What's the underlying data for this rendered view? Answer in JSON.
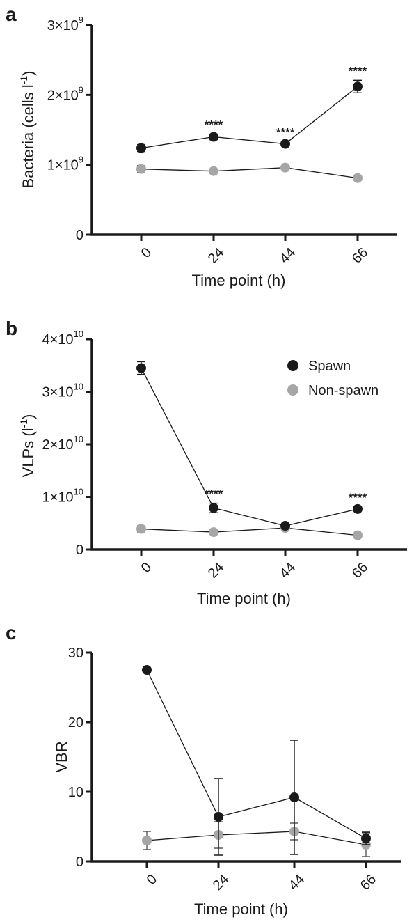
{
  "chart_data": [
    {
      "panel": "a",
      "type": "line",
      "ylabel": "Bacteria (cells l",
      "ylabel_sup": "-1",
      "ylabel_end": ")",
      "xlabel": "Time point (h)",
      "categories": [
        "0",
        "24",
        "44",
        "66"
      ],
      "yticks": [
        {
          "value": 0,
          "mant": "0",
          "exp": ""
        },
        {
          "value": 1000000000,
          "mant": "1×10",
          "exp": "9"
        },
        {
          "value": 2000000000,
          "mant": "2×10",
          "exp": "9"
        },
        {
          "value": 3000000000,
          "mant": "3×10",
          "exp": "9"
        }
      ],
      "ylim": [
        0,
        3000000000
      ],
      "series": [
        {
          "name": "Spawn",
          "color": "#1a1a1a",
          "values": [
            1240000000,
            1400000000,
            1300000000,
            2120000000
          ],
          "errors": [
            50000000,
            40000000,
            30000000,
            90000000
          ]
        },
        {
          "name": "Non-spawn",
          "color": "#a6a6a6",
          "values": [
            940000000,
            910000000,
            960000000,
            810000000
          ],
          "errors": [
            50000000,
            30000000,
            30000000,
            30000000
          ]
        }
      ],
      "annotations": [
        {
          "x_index": 1,
          "text": "****"
        },
        {
          "x_index": 2,
          "text": "****"
        },
        {
          "x_index": 3,
          "text": "****"
        }
      ],
      "grid": false
    },
    {
      "panel": "b",
      "type": "line",
      "ylabel": "VLPs (l",
      "ylabel_sup": "-1",
      "ylabel_end": ")",
      "xlabel": "Time point (h)",
      "categories": [
        "0",
        "24",
        "44",
        "66"
      ],
      "yticks": [
        {
          "value": 0,
          "mant": "0",
          "exp": ""
        },
        {
          "value": 10000000000,
          "mant": "1×10",
          "exp": "10"
        },
        {
          "value": 20000000000,
          "mant": "2×10",
          "exp": "10"
        },
        {
          "value": 30000000000,
          "mant": "3×10",
          "exp": "10"
        },
        {
          "value": 40000000000,
          "mant": "4×10",
          "exp": "10"
        }
      ],
      "ylim": [
        0,
        40000000000
      ],
      "series": [
        {
          "name": "Spawn",
          "color": "#1a1a1a",
          "values": [
            34500000000,
            7900000000,
            4500000000,
            7700000000
          ],
          "errors": [
            1200000000,
            900000000,
            300000000,
            400000000
          ]
        },
        {
          "name": "Non-spawn",
          "color": "#a6a6a6",
          "values": [
            3900000000,
            3300000000,
            4100000000,
            2700000000
          ],
          "errors": [
            600000000,
            300000000,
            300000000,
            300000000
          ]
        }
      ],
      "annotations": [
        {
          "x_index": 1,
          "text": "****"
        },
        {
          "x_index": 3,
          "text": "****"
        }
      ],
      "legend": {
        "position": "top-right",
        "entries": [
          "Spawn",
          "Non-spawn"
        ]
      },
      "grid": false
    },
    {
      "panel": "c",
      "type": "line",
      "ylabel": "VBR",
      "ylabel_sup": "",
      "ylabel_end": "",
      "xlabel": "Time point (h)",
      "categories": [
        "0",
        "24",
        "44",
        "66"
      ],
      "yticks": [
        {
          "value": 0,
          "mant": "0",
          "exp": ""
        },
        {
          "value": 10,
          "mant": "10",
          "exp": ""
        },
        {
          "value": 20,
          "mant": "20",
          "exp": ""
        },
        {
          "value": 30,
          "mant": "30",
          "exp": ""
        }
      ],
      "ylim": [
        0,
        30
      ],
      "series": [
        {
          "name": "Spawn",
          "color": "#1a1a1a",
          "values": [
            27.5,
            6.4,
            9.2,
            3.3
          ],
          "errors": [
            0,
            5.5,
            8.2,
            0.9
          ]
        },
        {
          "name": "Non-spawn",
          "color": "#a6a6a6",
          "values": [
            3.0,
            3.8,
            4.3,
            2.4
          ],
          "errors": [
            1.3,
            1.9,
            1.2,
            1.7
          ]
        }
      ],
      "annotations": [],
      "grid": false
    }
  ]
}
